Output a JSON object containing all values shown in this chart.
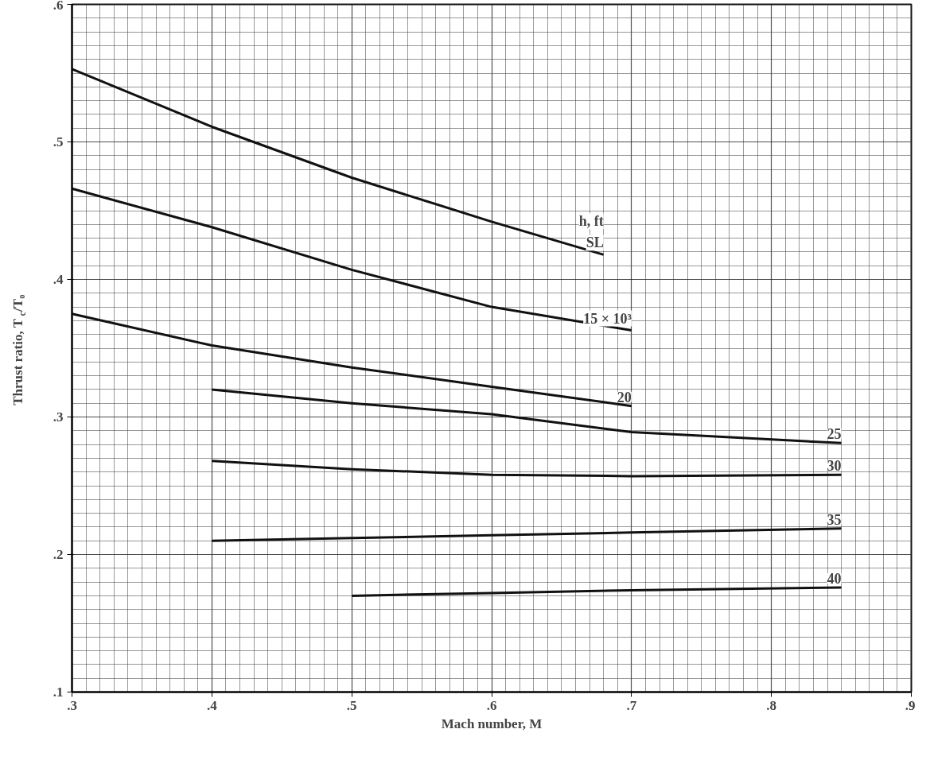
{
  "chart_data": {
    "type": "line",
    "xlabel": "Mach number, M",
    "ylabel": "Thrust ratio, T$_{c}$/T₀",
    "legend_title": "h, ft",
    "xlim": [
      0.3,
      0.9
    ],
    "ylim": [
      0.1,
      0.6
    ],
    "xticks": [
      {
        "value": 0.3,
        "label": ".3"
      },
      {
        "value": 0.4,
        "label": ".4"
      },
      {
        "value": 0.5,
        "label": ".5"
      },
      {
        "value": 0.6,
        "label": ".6"
      },
      {
        "value": 0.7,
        "label": ".7"
      },
      {
        "value": 0.8,
        "label": ".8"
      },
      {
        "value": 0.9,
        "label": ".9"
      }
    ],
    "yticks": [
      {
        "value": 0.1,
        "label": ".1"
      },
      {
        "value": 0.2,
        "label": ".2"
      },
      {
        "value": 0.3,
        "label": ".3"
      },
      {
        "value": 0.4,
        "label": ".4"
      },
      {
        "value": 0.5,
        "label": ".5"
      },
      {
        "value": 0.6,
        "label": ".6"
      }
    ],
    "grid": true,
    "marker": "none",
    "line_style": "solid",
    "series": [
      {
        "name": "SL",
        "color": "#111111",
        "x": [
          0.3,
          0.4,
          0.5,
          0.6,
          0.68
        ],
        "values": [
          0.553,
          0.511,
          0.474,
          0.442,
          0.418
        ]
      },
      {
        "name": "15 × 10³",
        "color": "#111111",
        "x": [
          0.3,
          0.4,
          0.5,
          0.6,
          0.7
        ],
        "values": [
          0.466,
          0.438,
          0.407,
          0.38,
          0.363
        ]
      },
      {
        "name": "20",
        "color": "#111111",
        "x": [
          0.3,
          0.4,
          0.5,
          0.6,
          0.7
        ],
        "values": [
          0.375,
          0.352,
          0.336,
          0.322,
          0.308
        ]
      },
      {
        "name": "25",
        "color": "#111111",
        "x": [
          0.4,
          0.5,
          0.6,
          0.7,
          0.85
        ],
        "values": [
          0.32,
          0.31,
          0.302,
          0.289,
          0.281
        ]
      },
      {
        "name": "30",
        "color": "#111111",
        "x": [
          0.4,
          0.5,
          0.6,
          0.7,
          0.85
        ],
        "values": [
          0.268,
          0.262,
          0.258,
          0.257,
          0.258
        ]
      },
      {
        "name": "35",
        "color": "#111111",
        "x": [
          0.4,
          0.5,
          0.6,
          0.7,
          0.85
        ],
        "values": [
          0.21,
          0.212,
          0.214,
          0.216,
          0.219
        ]
      },
      {
        "name": "40",
        "color": "#111111",
        "x": [
          0.5,
          0.6,
          0.7,
          0.85
        ],
        "values": [
          0.17,
          0.172,
          0.174,
          0.176
        ]
      }
    ]
  }
}
